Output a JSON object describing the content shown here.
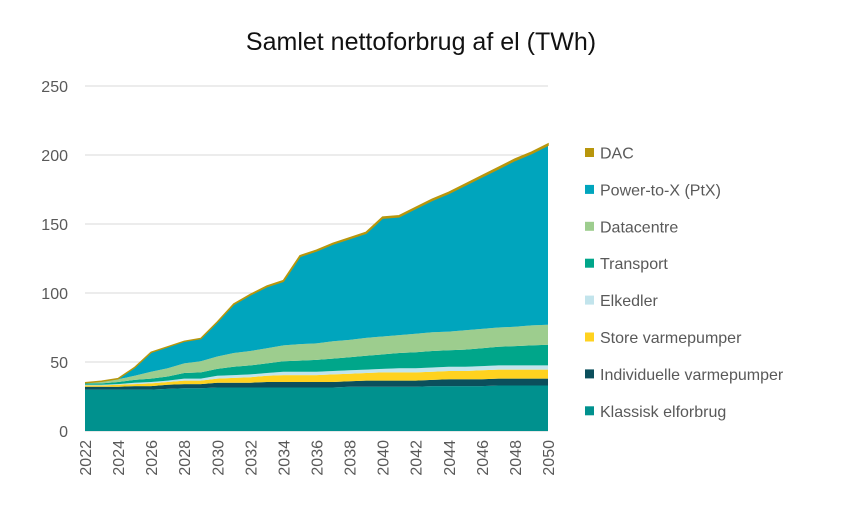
{
  "chart_data": {
    "type": "area",
    "stacked": true,
    "title": "Samlet nettoforbrug af el (TWh)",
    "xlabel": "",
    "ylabel": "",
    "ylim": [
      0,
      250
    ],
    "yticks": [
      0,
      50,
      100,
      150,
      200,
      250
    ],
    "grid": true,
    "legend_position": "right",
    "x": [
      2022,
      2023,
      2024,
      2025,
      2026,
      2027,
      2028,
      2029,
      2030,
      2031,
      2032,
      2033,
      2034,
      2035,
      2036,
      2037,
      2038,
      2039,
      2040,
      2041,
      2042,
      2043,
      2044,
      2045,
      2046,
      2047,
      2048,
      2049,
      2050
    ],
    "xticks": [
      2022,
      2024,
      2026,
      2028,
      2030,
      2032,
      2034,
      2036,
      2038,
      2040,
      2042,
      2044,
      2046,
      2048,
      2050
    ],
    "series": [
      {
        "name": "Klassisk elforbrug",
        "color": "#00918E",
        "values": [
          30,
          30,
          30,
          30,
          30,
          30.5,
          31,
          31,
          31.5,
          31.5,
          31.5,
          31.5,
          31.5,
          31.5,
          31.5,
          31.5,
          32,
          32,
          32,
          32,
          32,
          32.5,
          32.5,
          32.5,
          32.5,
          33,
          33,
          33,
          33
        ]
      },
      {
        "name": "Individuelle varmepumper",
        "color": "#0B4F5C",
        "values": [
          2,
          2,
          2,
          2.5,
          2.5,
          3,
          3,
          3,
          3.5,
          3.5,
          3.5,
          4,
          4,
          4,
          4,
          4,
          4,
          4.5,
          4.5,
          4.5,
          4.5,
          4.5,
          5,
          5,
          5,
          5,
          5,
          5,
          5
        ]
      },
      {
        "name": "Store varmepumper",
        "color": "#FFD21F",
        "values": [
          1,
          1,
          1.5,
          1.5,
          2,
          2,
          2.5,
          2.5,
          3,
          3.5,
          4,
          4.5,
          5,
          5,
          5,
          5.5,
          5.5,
          5.5,
          6,
          6,
          6,
          6,
          6,
          6,
          6.5,
          6.5,
          6.5,
          6.5,
          6.5
        ]
      },
      {
        "name": "Elkedler",
        "color": "#C2E4EC",
        "values": [
          0.5,
          0.5,
          0.5,
          1,
          1,
          1,
          1.5,
          1.5,
          2,
          2,
          2,
          2,
          2.5,
          2.5,
          2.5,
          2.5,
          2.5,
          2.5,
          2.5,
          3,
          3,
          3,
          3,
          3,
          3,
          3,
          3,
          3,
          3
        ]
      },
      {
        "name": "Transport",
        "color": "#00A68A",
        "values": [
          1,
          1,
          1.5,
          2,
          2.5,
          3,
          4,
          4.5,
          5,
          6,
          6.5,
          7,
          7.5,
          8,
          8.5,
          9,
          9.5,
          10,
          10.5,
          11,
          11.5,
          12,
          12,
          12.5,
          13,
          13.5,
          14,
          14.5,
          15
        ]
      },
      {
        "name": "Datacentre",
        "color": "#9DCD8E",
        "values": [
          0.5,
          1,
          2,
          3,
          5,
          6,
          7,
          8,
          9,
          10,
          10.5,
          11,
          11.5,
          12,
          12,
          12.5,
          12.5,
          13,
          13,
          13,
          13.5,
          13.5,
          13.5,
          14,
          14,
          14,
          14,
          14.5,
          14.5
        ]
      },
      {
        "name": "Power-to-X (PtX)",
        "color": "#00A5BD",
        "values": [
          0,
          0.5,
          0.5,
          6,
          14,
          15.5,
          16,
          16.5,
          25,
          35.3,
          40.7,
          44.6,
          46.5,
          63.5,
          67,
          70.4,
          73.4,
          75.8,
          85.8,
          85.7,
          90.7,
          95.7,
          100.1,
          105.1,
          110.1,
          115,
          120.5,
          124.5,
          130
        ]
      },
      {
        "name": "DAC",
        "color": "#B8960C",
        "values": [
          0,
          0,
          0,
          0,
          0,
          0,
          0,
          0,
          0,
          0.2,
          0.3,
          0.4,
          0.5,
          0.5,
          0.5,
          0.6,
          0.6,
          0.7,
          0.7,
          0.8,
          0.8,
          0.8,
          0.9,
          0.9,
          0.9,
          1,
          1,
          1,
          1
        ]
      }
    ]
  }
}
